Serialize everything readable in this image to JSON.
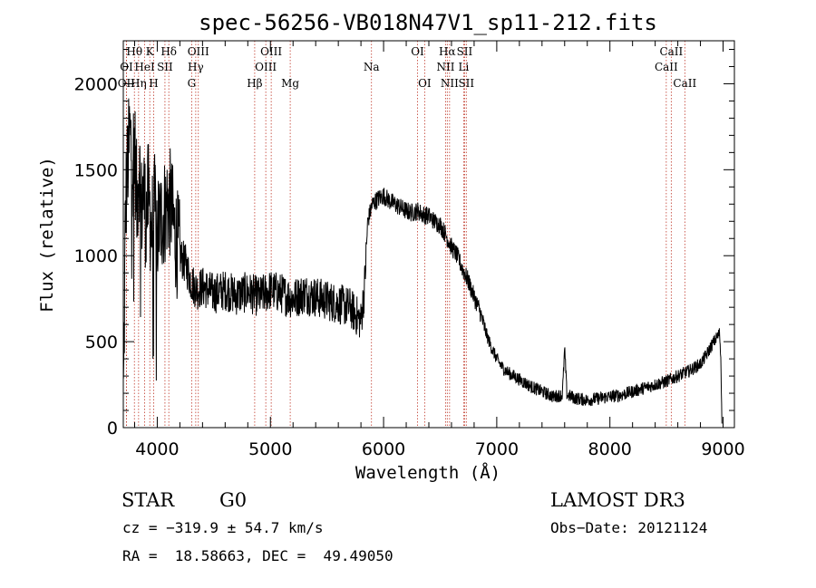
{
  "chart_data": {
    "type": "line",
    "title": "spec-56256-VB018N47V1_sp11-212.fits",
    "xlabel": "Wavelength (Å)",
    "ylabel": "Flux (relative)",
    "xlim": [
      3700,
      9100
    ],
    "ylim": [
      0,
      2250
    ],
    "xticks": [
      4000,
      5000,
      6000,
      7000,
      8000,
      9000
    ],
    "yticks": [
      0,
      500,
      1000,
      1500,
      2000
    ],
    "series": [
      {
        "name": "flux",
        "anchors": [
          [
            3700,
            60
          ],
          [
            3720,
            1300
          ],
          [
            3740,
            1550
          ],
          [
            3760,
            1700
          ],
          [
            3780,
            1550
          ],
          [
            3800,
            1650
          ],
          [
            3820,
            1300
          ],
          [
            3840,
            1550
          ],
          [
            3860,
            1250
          ],
          [
            3880,
            1400
          ],
          [
            3900,
            1200
          ],
          [
            3920,
            1350
          ],
          [
            3950,
            1150
          ],
          [
            3980,
            1280
          ],
          [
            4000,
            1150
          ],
          [
            4030,
            1200
          ],
          [
            4060,
            1250
          ],
          [
            4090,
            1300
          ],
          [
            4120,
            1300
          ],
          [
            4150,
            1150
          ],
          [
            4200,
            1000
          ],
          [
            4250,
            950
          ],
          [
            4300,
            850
          ],
          [
            4350,
            800
          ],
          [
            4400,
            820
          ],
          [
            4500,
            780
          ],
          [
            4600,
            800
          ],
          [
            4700,
            770
          ],
          [
            4800,
            790
          ],
          [
            4900,
            760
          ],
          [
            5000,
            800
          ],
          [
            5100,
            780
          ],
          [
            5200,
            750
          ],
          [
            5300,
            780
          ],
          [
            5400,
            760
          ],
          [
            5500,
            740
          ],
          [
            5600,
            720
          ],
          [
            5700,
            700
          ],
          [
            5800,
            620
          ],
          [
            5830,
            800
          ],
          [
            5860,
            1200
          ],
          [
            5900,
            1300
          ],
          [
            5950,
            1330
          ],
          [
            6000,
            1350
          ],
          [
            6050,
            1320
          ],
          [
            6100,
            1300
          ],
          [
            6150,
            1280
          ],
          [
            6200,
            1260
          ],
          [
            6250,
            1250
          ],
          [
            6300,
            1260
          ],
          [
            6350,
            1240
          ],
          [
            6400,
            1230
          ],
          [
            6450,
            1200
          ],
          [
            6500,
            1180
          ],
          [
            6550,
            1120
          ],
          [
            6600,
            1050
          ],
          [
            6650,
            1000
          ],
          [
            6700,
            920
          ],
          [
            6750,
            850
          ],
          [
            6800,
            760
          ],
          [
            6850,
            680
          ],
          [
            6900,
            560
          ],
          [
            6950,
            470
          ],
          [
            7000,
            400
          ],
          [
            7050,
            350
          ],
          [
            7100,
            320
          ],
          [
            7200,
            280
          ],
          [
            7300,
            240
          ],
          [
            7400,
            210
          ],
          [
            7500,
            180
          ],
          [
            7580,
            190
          ],
          [
            7600,
            460
          ],
          [
            7620,
            190
          ],
          [
            7700,
            170
          ],
          [
            7800,
            160
          ],
          [
            7900,
            170
          ],
          [
            8000,
            180
          ],
          [
            8100,
            190
          ],
          [
            8200,
            210
          ],
          [
            8300,
            230
          ],
          [
            8400,
            250
          ],
          [
            8500,
            270
          ],
          [
            8600,
            300
          ],
          [
            8700,
            330
          ],
          [
            8800,
            370
          ],
          [
            8850,
            420
          ],
          [
            8900,
            480
          ],
          [
            8950,
            530
          ],
          [
            8970,
            550
          ],
          [
            8980,
            400
          ],
          [
            8990,
            40
          ]
        ]
      }
    ],
    "spectral_lines": [
      {
        "wl": 3727,
        "label": "OII",
        "row": 2
      },
      {
        "wl": 3728,
        "label": "OI",
        "row": 1
      },
      {
        "wl": 3798,
        "label": "Hθ",
        "row": 0
      },
      {
        "wl": 3835,
        "label": "Hη",
        "row": 2
      },
      {
        "wl": 3889,
        "label": "HeI",
        "row": 1
      },
      {
        "wl": 3934,
        "label": "K",
        "row": 0
      },
      {
        "wl": 3968,
        "label": "H",
        "row": 2
      },
      {
        "wl": 4068,
        "label": "SII",
        "row": 1
      },
      {
        "wl": 4102,
        "label": "Hδ",
        "row": 0
      },
      {
        "wl": 4304,
        "label": "G",
        "row": 2
      },
      {
        "wl": 4340,
        "label": "Hγ",
        "row": 1
      },
      {
        "wl": 4363,
        "label": "OIII",
        "row": 0
      },
      {
        "wl": 4861,
        "label": "Hβ",
        "row": 2
      },
      {
        "wl": 4959,
        "label": "OIII",
        "row": 1
      },
      {
        "wl": 5007,
        "label": "OIII",
        "row": 0
      },
      {
        "wl": 5175,
        "label": "Mg",
        "row": 2
      },
      {
        "wl": 5893,
        "label": "Na",
        "row": 1
      },
      {
        "wl": 6300,
        "label": "OI",
        "row": 0
      },
      {
        "wl": 6363,
        "label": "OI",
        "row": 2
      },
      {
        "wl": 6548,
        "label": "NII",
        "row": 1
      },
      {
        "wl": 6563,
        "label": "Hα",
        "row": 0
      },
      {
        "wl": 6583,
        "label": "NII",
        "row": 2
      },
      {
        "wl": 6708,
        "label": "Li",
        "row": 1
      },
      {
        "wl": 6716,
        "label": "SII",
        "row": 0
      },
      {
        "wl": 6731,
        "label": "SII",
        "row": 2
      },
      {
        "wl": 8498,
        "label": "CaII",
        "row": 1
      },
      {
        "wl": 8542,
        "label": "CaII",
        "row": 0
      },
      {
        "wl": 8662,
        "label": "CaII",
        "row": 2
      }
    ]
  },
  "info": {
    "class": "STAR",
    "subclass": "G0",
    "survey": "LAMOST DR3",
    "cz": "cz = −319.9 ± 54.7 km/s",
    "obs_date": "Obs−Date: 20121124",
    "radec": "RA =  18.58663, DEC =  49.49050"
  }
}
